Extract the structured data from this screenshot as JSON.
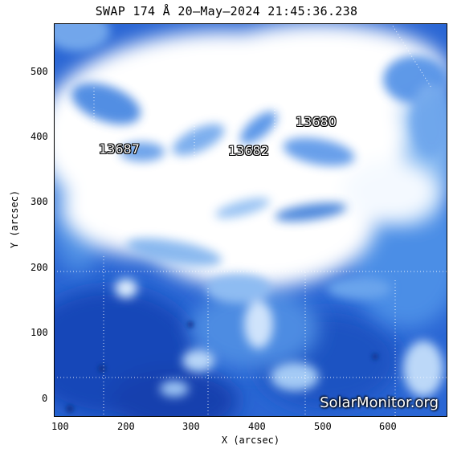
{
  "title": "SWAP 174 Å 20–May–2024 21:45:36.238",
  "xlabel": "X (arcsec)",
  "ylabel": "Y (arcsec)",
  "x_ticks": [
    "100",
    "200",
    "300",
    "400",
    "500",
    "600"
  ],
  "y_ticks": [
    "0",
    "100",
    "200",
    "300",
    "400",
    "500"
  ],
  "regions": [
    {
      "number": "13687",
      "x_arcsec": 190,
      "y_arcsec": 385
    },
    {
      "number": "13682",
      "x_arcsec": 375,
      "y_arcsec": 383
    },
    {
      "number": "13680",
      "x_arcsec": 490,
      "y_arcsec": 425
    }
  ],
  "watermark": "SolarMonitor.org"
}
